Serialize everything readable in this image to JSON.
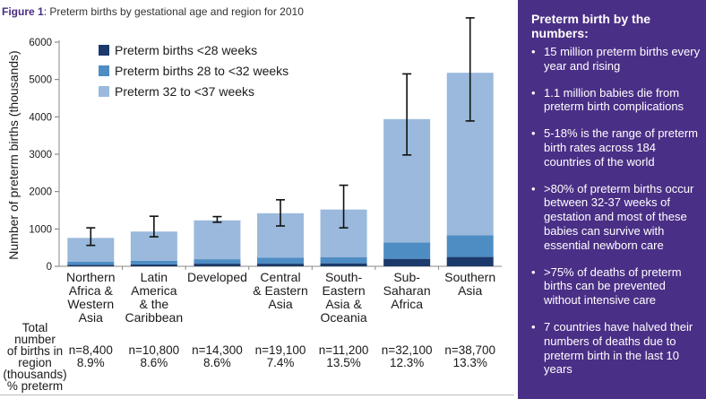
{
  "figure": {
    "label": "Figure 1",
    "title": ": Preterm births by gestational age and region for 2010"
  },
  "colors": {
    "lt28": "#1b3a6b",
    "w28to32": "#4d8dc4",
    "w32to37": "#9ab9dc",
    "panel": "#4a2f86",
    "errorbar": "#111111"
  },
  "table": {
    "row_label": [
      "Total number",
      "of births in",
      "region",
      "(thousands)",
      "% preterm"
    ],
    "stats": [
      {
        "n": "n=8,400",
        "pct": "8.9%"
      },
      {
        "n": "n=10,800",
        "pct": "8.6%"
      },
      {
        "n": "n=14,300",
        "pct": "8.6%"
      },
      {
        "n": "n=19,100",
        "pct": "7.4%"
      },
      {
        "n": "n=11,200",
        "pct": "13.5%"
      },
      {
        "n": "n=32,100",
        "pct": "12.3%"
      },
      {
        "n": "n=38,700",
        "pct": "13.3%"
      }
    ]
  },
  "chart_data": {
    "type": "bar",
    "stacked": true,
    "ylabel": "Number of preterm births (thousands)",
    "ylim": [
      0,
      6000
    ],
    "yticks": [
      "0",
      "1000",
      "2000",
      "3000",
      "4000",
      "5000",
      "6000"
    ],
    "categories": [
      [
        "Northern",
        "Africa &",
        "Western",
        "Asia"
      ],
      [
        "Latin",
        "America",
        "& the",
        "Caribbean"
      ],
      [
        "Developed"
      ],
      [
        "Central",
        "& Eastern",
        "Asia"
      ],
      [
        "South-",
        "Eastern",
        "Asia &",
        "Oceania"
      ],
      [
        "Sub-",
        "Saharan",
        "Africa"
      ],
      [
        "Southern",
        "Asia"
      ]
    ],
    "series": [
      {
        "name": "Preterm births <28 weeks",
        "values": [
          40,
          50,
          70,
          70,
          80,
          200,
          250
        ]
      },
      {
        "name": "Preterm births 28 to <32 weeks",
        "values": [
          80,
          100,
          120,
          160,
          160,
          440,
          580
        ]
      },
      {
        "name": "Preterm 32 to <37 weeks",
        "values": [
          640,
          780,
          1040,
          1190,
          1280,
          3300,
          4350
        ]
      }
    ],
    "error_bars": [
      {
        "low": 560,
        "high": 1030
      },
      {
        "low": 790,
        "high": 1340
      },
      {
        "low": 1180,
        "high": 1330
      },
      {
        "low": 1080,
        "high": 1780
      },
      {
        "low": 1030,
        "high": 2170
      },
      {
        "low": 2980,
        "high": 5150
      },
      {
        "low": 3890,
        "high": 6650
      }
    ],
    "legend_position": "top-left"
  },
  "panel": {
    "title": "Preterm birth by the numbers:",
    "items": [
      "15 million preterm births every year and rising",
      "1.1 million babies die from preterm birth complications",
      "5-18% is the range of preterm birth rates across 184 countries of the world",
      ">80% of preterm births occur between 32-37 weeks of gestation and most of these babies can survive with essential newborn care",
      ">75% of deaths of preterm births can be prevented without intensive care",
      "7 countries have halved their numbers of deaths due to preterm birth in the last 10 years"
    ]
  }
}
